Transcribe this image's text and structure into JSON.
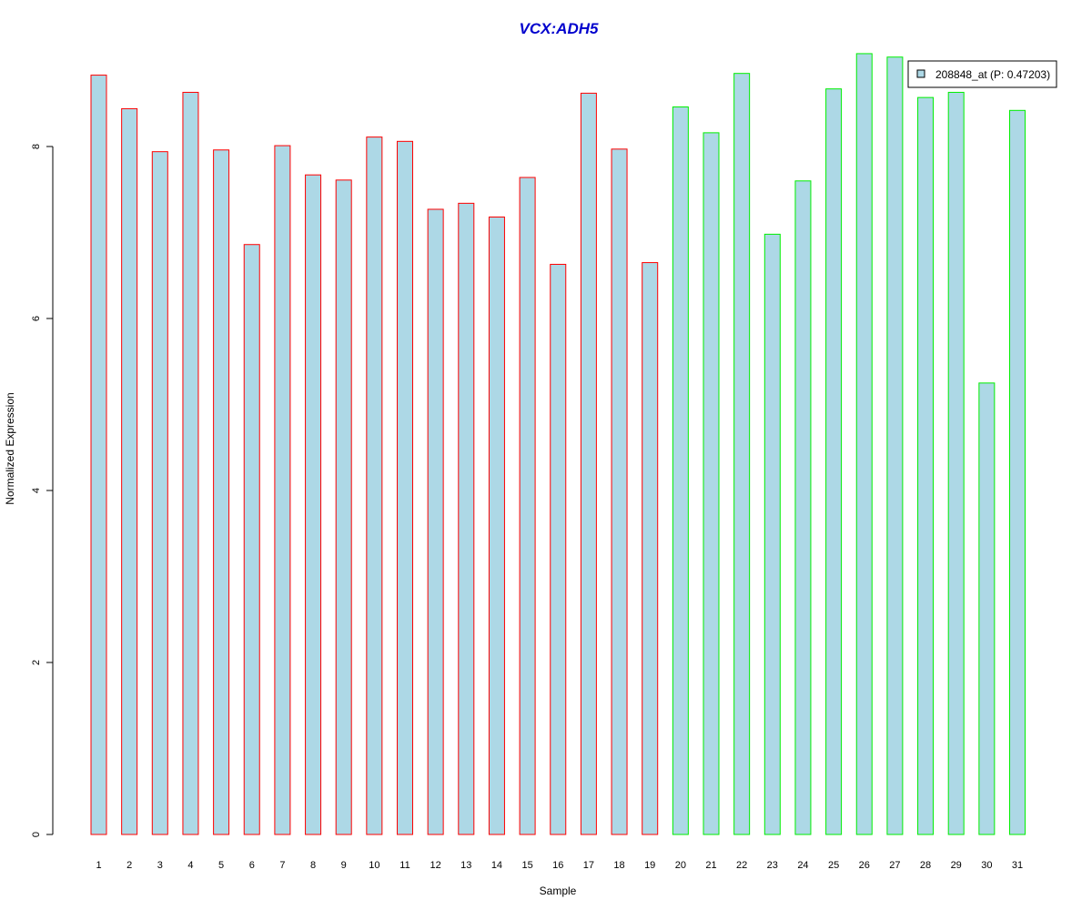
{
  "chart_data": {
    "type": "bar",
    "title": "VCX:ADH5",
    "xlabel": "Sample",
    "ylabel": "Normalized Expression",
    "categories": [
      "1",
      "2",
      "3",
      "4",
      "5",
      "6",
      "7",
      "8",
      "9",
      "10",
      "11",
      "12",
      "13",
      "14",
      "15",
      "16",
      "17",
      "18",
      "19",
      "20",
      "21",
      "22",
      "23",
      "24",
      "25",
      "26",
      "27",
      "28",
      "29",
      "30",
      "31"
    ],
    "series": [
      {
        "name": "208848_at (P: 0.47203)",
        "values": [
          8.83,
          8.44,
          7.94,
          8.63,
          7.96,
          6.86,
          8.01,
          7.67,
          7.61,
          8.11,
          8.06,
          7.27,
          7.34,
          7.18,
          7.64,
          6.63,
          8.62,
          7.97,
          6.65,
          8.46,
          8.16,
          8.85,
          6.98,
          7.6,
          8.67,
          9.08,
          9.04,
          8.57,
          8.63,
          5.25,
          8.42
        ]
      }
    ],
    "groups": [
      {
        "from": 1,
        "to": 19,
        "border_color": "#ff0000"
      },
      {
        "from": 20,
        "to": 31,
        "border_color": "#00ee00"
      }
    ],
    "yticks": [
      0,
      2,
      4,
      6,
      8
    ],
    "ylim": [
      0,
      9.08
    ],
    "bar_fill": "#add8e6",
    "title_color": "#0000cd",
    "legend_position": "top-right",
    "grid": false
  }
}
